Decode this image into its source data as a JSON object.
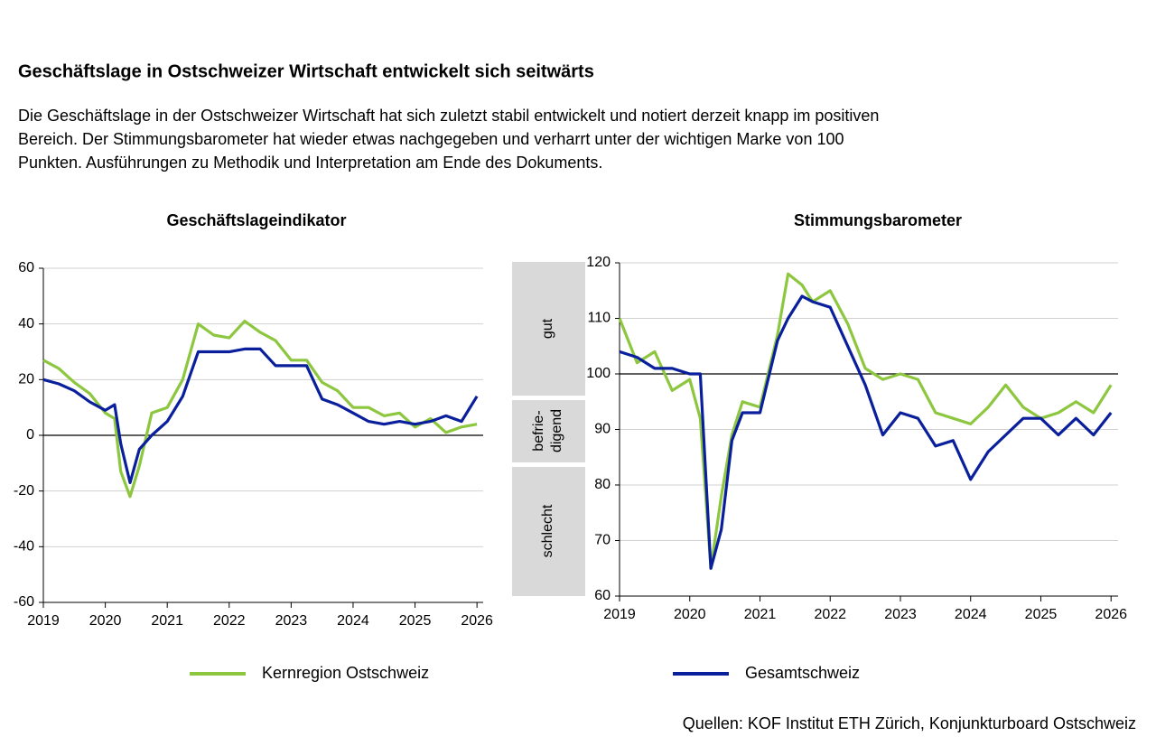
{
  "title": "Geschäftslage in Ostschweizer Wirtschaft entwickelt sich seitwärts",
  "description": [
    "Die Geschäftslage in der Ostschweizer Wirtschaft hat sich zuletzt stabil entwickelt und notiert derzeit knapp im positiven",
    "Bereich. Der Stimmungsbarometer hat wieder etwas nachgegeben und verharrt unter der wichtigen Marke von 100",
    "Punkten. Ausführungen zu Methodik und Interpretation am Ende des Dokuments."
  ],
  "zones": [
    [
      "gut"
    ],
    [
      "befrie-",
      "digend"
    ],
    [
      "schlecht"
    ]
  ],
  "source": "Quellen: KOF Institut ETH Zürich, Konjunkturboard Ostschweiz",
  "chart_data": [
    {
      "type": "line",
      "title": "Geschäftslageindikator",
      "x": [
        2019,
        2019.25,
        2019.5,
        2019.75,
        2020,
        2020.15,
        2020.25,
        2020.4,
        2020.55,
        2020.75,
        2021,
        2021.25,
        2021.5,
        2021.75,
        2022,
        2022.25,
        2022.5,
        2022.75,
        2023,
        2023.25,
        2023.5,
        2023.75,
        2024,
        2024.25,
        2024.5,
        2024.75,
        2025,
        2025.25,
        2025.5,
        2025.75,
        2026
      ],
      "series": [
        {
          "name": "Kernregion Ostschweiz",
          "color": "#8dc63f",
          "values": [
            27,
            24,
            19,
            15,
            8,
            6,
            -13,
            -22,
            -11,
            8,
            10,
            20,
            40,
            36,
            35,
            41,
            37,
            34,
            27,
            27,
            19,
            16,
            10,
            10,
            7,
            8,
            3,
            6,
            1,
            3,
            4
          ]
        },
        {
          "name": "Gesamtschweiz",
          "color": "#0a1f9c",
          "values": [
            20,
            18.5,
            16,
            12,
            9,
            11,
            -3,
            -17,
            -5,
            0,
            5,
            14,
            30,
            30,
            30,
            31,
            31,
            25,
            25,
            25,
            13,
            11,
            8,
            5,
            4,
            5,
            4,
            5,
            7,
            5,
            14
          ]
        }
      ],
      "xlim": [
        2019,
        2026.1
      ],
      "xticks": [
        2019,
        2020,
        2021,
        2022,
        2023,
        2024,
        2025,
        2026
      ],
      "ylim": [
        -60,
        60
      ],
      "yticks": [
        -60,
        -40,
        -20,
        0,
        20,
        40,
        60
      ],
      "grid": true,
      "reference_line": 0
    },
    {
      "type": "line",
      "title": "Stimmungsbarometer",
      "x": [
        2019,
        2019.25,
        2019.5,
        2019.75,
        2020,
        2020.15,
        2020.3,
        2020.45,
        2020.6,
        2020.75,
        2021,
        2021.25,
        2021.4,
        2021.6,
        2021.75,
        2022,
        2022.25,
        2022.5,
        2022.75,
        2023,
        2023.25,
        2023.5,
        2023.75,
        2024,
        2024.25,
        2024.5,
        2024.75,
        2025,
        2025.25,
        2025.5,
        2025.75,
        2026
      ],
      "series": [
        {
          "name": "Kernregion Ostschweiz",
          "color": "#8dc63f",
          "values": [
            110,
            102,
            104,
            97,
            99,
            92,
            65,
            78,
            89,
            95,
            94,
            107,
            118,
            116,
            113,
            115,
            109,
            101,
            99,
            100,
            99,
            93,
            92,
            91,
            94,
            98,
            94,
            92,
            93,
            95,
            93,
            98
          ]
        },
        {
          "name": "Gesamtschweiz",
          "color": "#0a1f9c",
          "values": [
            104,
            103,
            101,
            101,
            100,
            100,
            65,
            72,
            88,
            93,
            93,
            106,
            110,
            114,
            113,
            112,
            105,
            98,
            89,
            93,
            92,
            87,
            88,
            81,
            86,
            89,
            92,
            92,
            89,
            92,
            89,
            93
          ]
        }
      ],
      "xlim": [
        2019,
        2026.1
      ],
      "xticks": [
        2019,
        2020,
        2021,
        2022,
        2023,
        2024,
        2025,
        2026
      ],
      "ylim": [
        60,
        120
      ],
      "yticks": [
        60,
        70,
        80,
        90,
        100,
        110,
        120
      ],
      "grid": true,
      "reference_line": 100
    }
  ]
}
